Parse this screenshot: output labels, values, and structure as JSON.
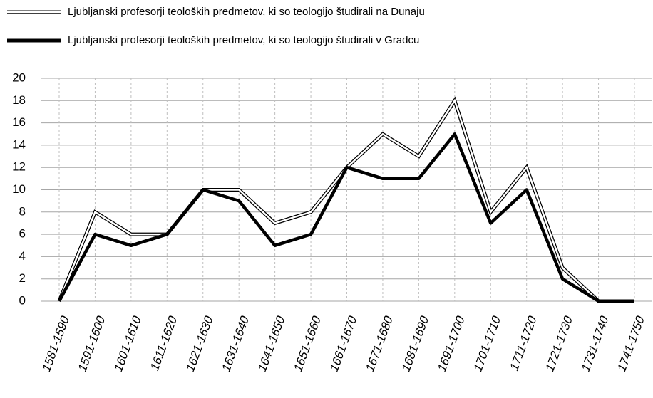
{
  "chart_data": {
    "type": "line",
    "categories": [
      "1581-1590",
      "1591-1600",
      "1601-1610",
      "1611-1620",
      "1621-1630",
      "1631-1640",
      "1641-1650",
      "1651-1660",
      "1661-1670",
      "1671-1680",
      "1681-1690",
      "1691-1700",
      "1701-1710",
      "1711-1720",
      "1721-1730",
      "1731-1740",
      "1741-1750"
    ],
    "series": [
      {
        "name": "Ljubljanski profesorji teoloških predmetov, ki so teologijo študirali na Dunaju",
        "color": "#000000",
        "style": "double",
        "values": [
          0,
          8,
          6,
          6,
          10,
          10,
          7,
          8,
          12,
          15,
          13,
          18,
          8,
          12,
          3,
          0,
          0
        ]
      },
      {
        "name": "Ljubljanski profesorji teoloških predmetov, ki so teologijo študirali v Gradcu",
        "color": "#000000",
        "style": "solid",
        "values": [
          0,
          6,
          5,
          6,
          10,
          9,
          5,
          6,
          12,
          11,
          11,
          15,
          7,
          10,
          2,
          0,
          0
        ]
      }
    ],
    "ylim": [
      0,
      20
    ],
    "yticks": [
      0,
      2,
      4,
      6,
      8,
      10,
      12,
      14,
      16,
      18,
      20
    ],
    "grid": true,
    "legend": "top"
  }
}
